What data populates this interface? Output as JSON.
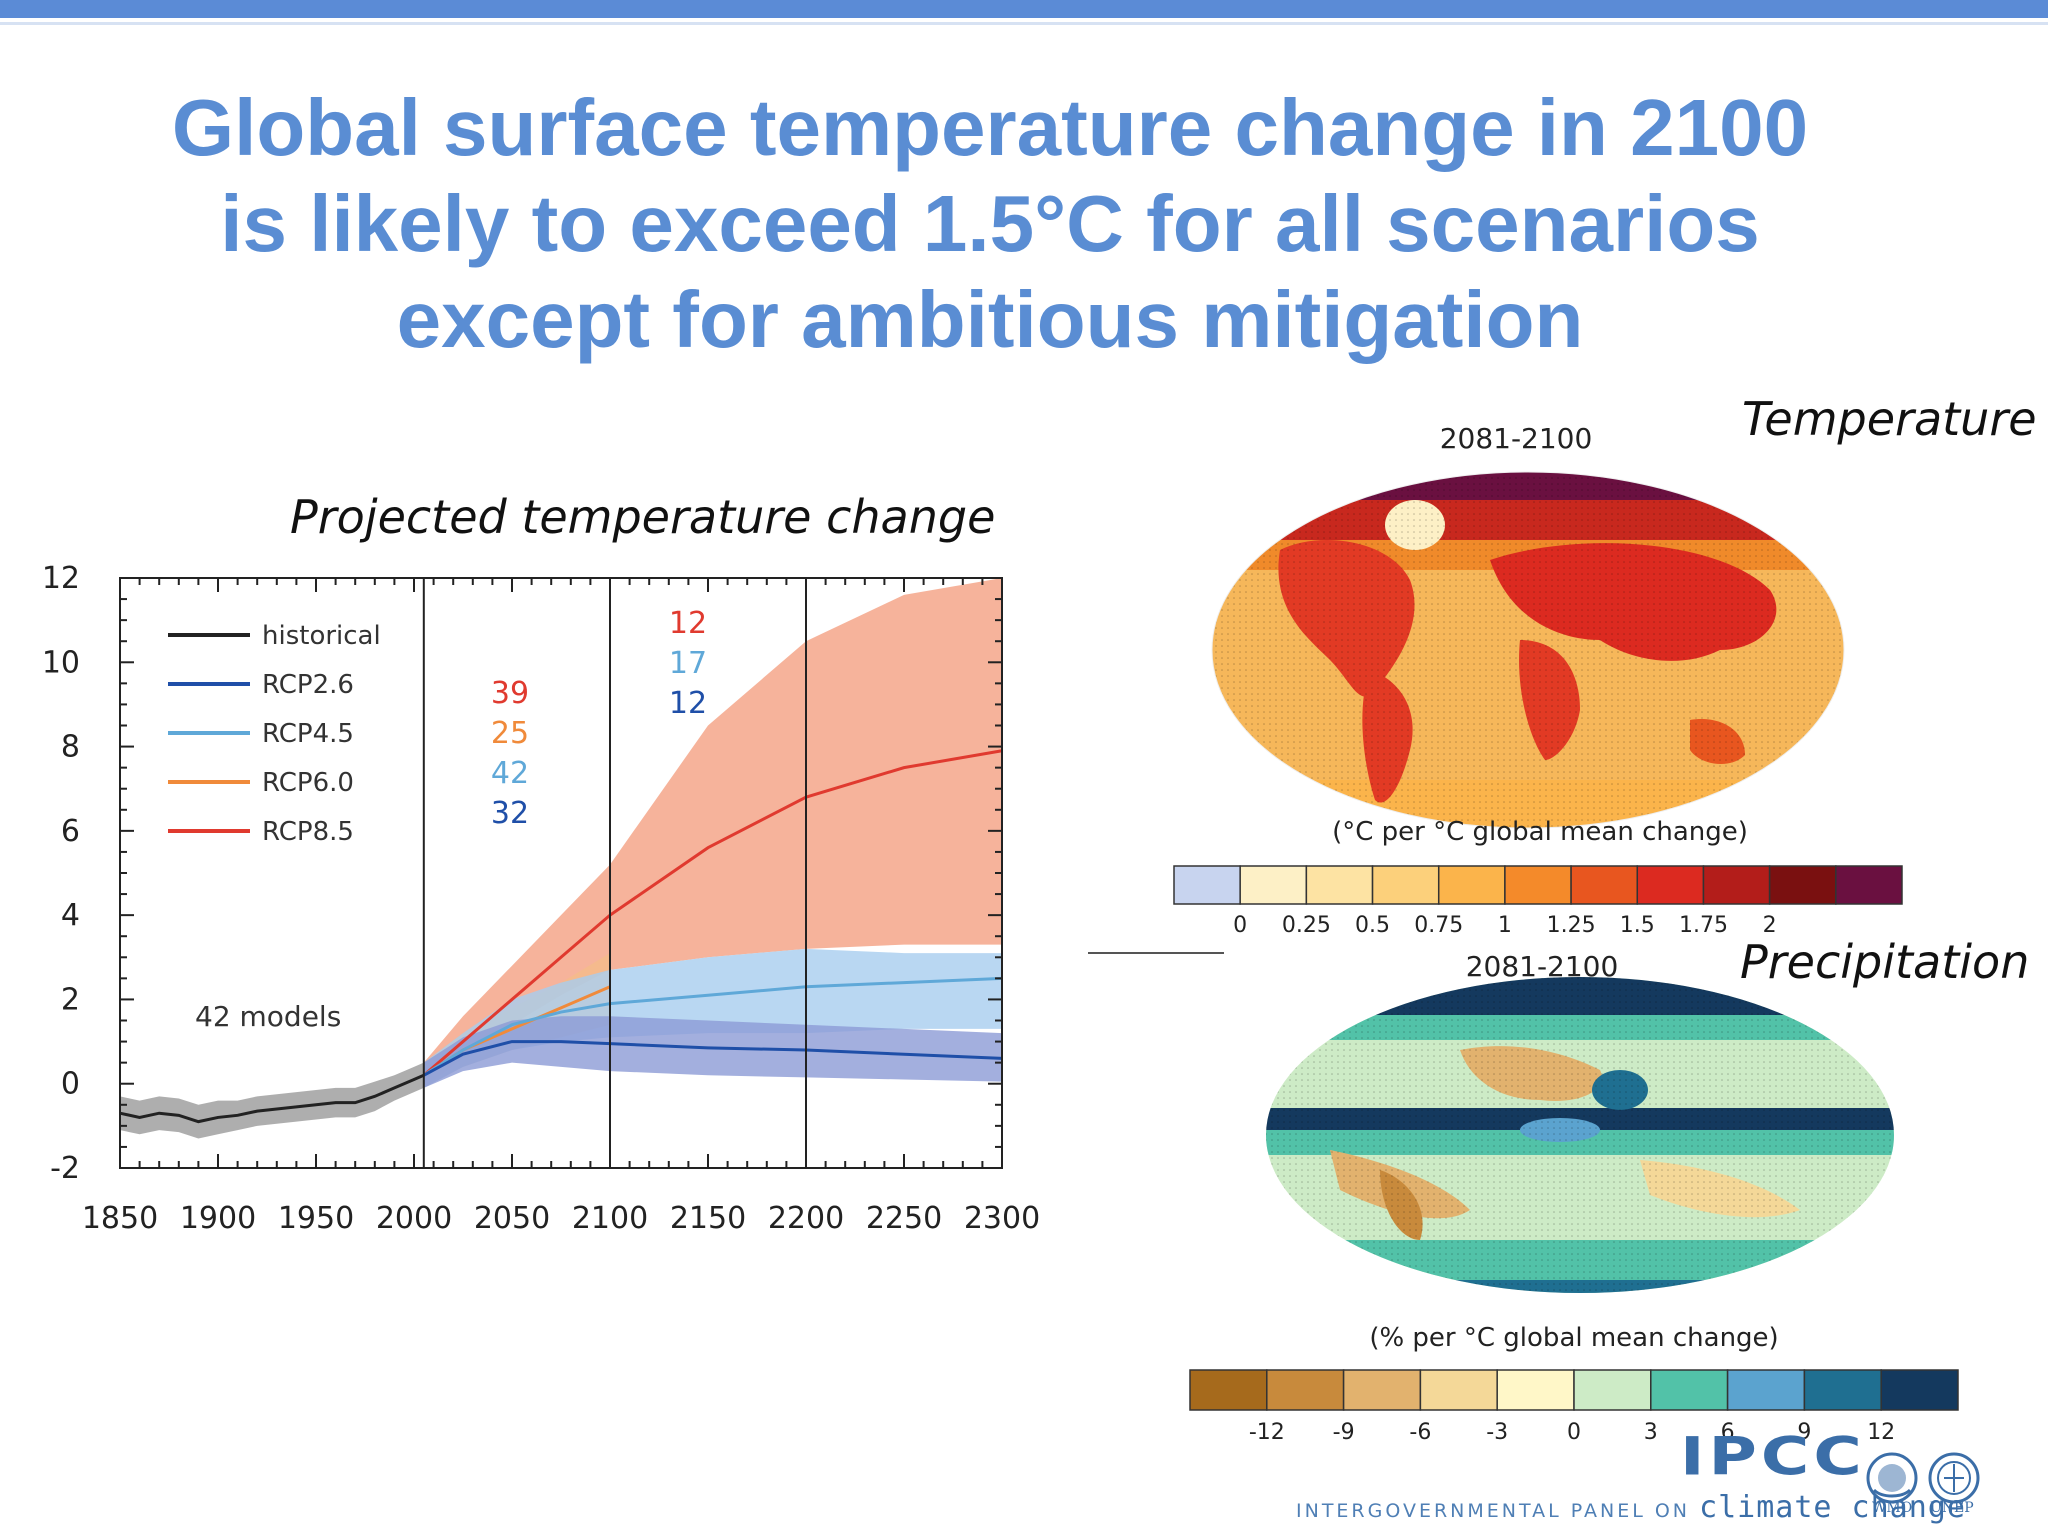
{
  "slide": {
    "title_lines": [
      "Global surface temperature change in 2100",
      "is likely to exceed 1.5°C for all scenarios",
      "except for ambitious mitigation"
    ],
    "left_label": "Projected temperature change",
    "temperature_label": "Temperature",
    "precipitation_label": "Precipitation",
    "accent_color": "#5a8dd3"
  },
  "chart_data": [
    {
      "type": "line",
      "xlim": [
        1850,
        2300
      ],
      "ylim": [
        -2,
        12
      ],
      "x_ticks": [
        1850,
        1900,
        1950,
        2000,
        2050,
        2100,
        2150,
        2200,
        2250,
        2300
      ],
      "y_ticks": [
        -2,
        0,
        2,
        4,
        6,
        8,
        10,
        12
      ],
      "period_lines": [
        2005,
        2100,
        2200
      ],
      "annotation": "42 models",
      "legend": [
        "historical",
        "RCP2.6",
        "RCP4.5",
        "RCP6.0",
        "RCP8.5"
      ],
      "model_counts": [
        {
          "period": "2006-2100",
          "values": [
            39,
            25,
            42,
            32
          ]
        },
        {
          "period": "2101-2300",
          "values": [
            12,
            17,
            12
          ]
        }
      ],
      "series": [
        {
          "name": "historical",
          "color": "#222222",
          "band_color": "#9a9a9a",
          "x": [
            1850,
            1860,
            1870,
            1880,
            1890,
            1900,
            1910,
            1920,
            1930,
            1940,
            1950,
            1960,
            1970,
            1980,
            1990,
            2000,
            2005
          ],
          "y": [
            -0.7,
            -0.8,
            -0.7,
            -0.75,
            -0.9,
            -0.8,
            -0.75,
            -0.65,
            -0.6,
            -0.55,
            -0.5,
            -0.45,
            -0.45,
            -0.3,
            -0.1,
            0.1,
            0.2
          ],
          "low": [
            -1.1,
            -1.2,
            -1.1,
            -1.15,
            -1.3,
            -1.2,
            -1.1,
            -1.0,
            -0.95,
            -0.9,
            -0.85,
            -0.8,
            -0.8,
            -0.65,
            -0.4,
            -0.2,
            -0.1
          ],
          "high": [
            -0.3,
            -0.4,
            -0.3,
            -0.35,
            -0.5,
            -0.4,
            -0.4,
            -0.3,
            -0.25,
            -0.2,
            -0.15,
            -0.1,
            -0.1,
            0.05,
            0.2,
            0.4,
            0.5
          ]
        },
        {
          "name": "RCP8.5",
          "color": "#e03a2f",
          "band_color": "#f4a082",
          "x": [
            2005,
            2025,
            2050,
            2075,
            2100,
            2150,
            2200,
            2250,
            2300
          ],
          "y": [
            0.2,
            1.0,
            2.0,
            3.0,
            4.0,
            5.6,
            6.8,
            7.5,
            7.9
          ],
          "low": [
            -0.1,
            0.6,
            1.4,
            2.1,
            2.7,
            3.0,
            3.2,
            3.3,
            3.3
          ],
          "high": [
            0.5,
            1.6,
            2.8,
            4.0,
            5.2,
            8.5,
            10.5,
            11.6,
            12.0
          ]
        },
        {
          "name": "RCP6.0",
          "color": "#f08a3a",
          "band_color": "#f5bb8a",
          "x": [
            2005,
            2025,
            2050,
            2075,
            2100
          ],
          "y": [
            0.2,
            0.8,
            1.3,
            1.8,
            2.3
          ],
          "low": [
            -0.1,
            0.4,
            0.8,
            1.1,
            1.4
          ],
          "high": [
            0.5,
            1.2,
            1.8,
            2.4,
            3.1
          ]
        },
        {
          "name": "RCP4.5",
          "color": "#5fa8d8",
          "band_color": "#a8cdef",
          "x": [
            2005,
            2025,
            2050,
            2075,
            2100,
            2150,
            2200,
            2250,
            2300
          ],
          "y": [
            0.2,
            0.8,
            1.4,
            1.7,
            1.9,
            2.1,
            2.3,
            2.4,
            2.5
          ],
          "low": [
            -0.1,
            0.4,
            0.8,
            1.0,
            1.1,
            1.2,
            1.2,
            1.3,
            1.3
          ],
          "high": [
            0.5,
            1.2,
            2.0,
            2.4,
            2.7,
            3.0,
            3.2,
            3.1,
            3.1
          ]
        },
        {
          "name": "RCP2.6",
          "color": "#1f4fa8",
          "band_color": "#8c9bd6",
          "x": [
            2005,
            2025,
            2050,
            2075,
            2100,
            2150,
            2200,
            2250,
            2300
          ],
          "y": [
            0.2,
            0.7,
            1.0,
            1.0,
            0.95,
            0.85,
            0.8,
            0.7,
            0.6
          ],
          "low": [
            -0.1,
            0.3,
            0.5,
            0.4,
            0.3,
            0.2,
            0.15,
            0.1,
            0.05
          ],
          "high": [
            0.5,
            1.1,
            1.5,
            1.6,
            1.6,
            1.5,
            1.4,
            1.3,
            1.2
          ]
        }
      ]
    },
    {
      "type": "heatmap",
      "panel": "temperature",
      "period": "2081-2100",
      "units_label": "(°C per °C global mean change)",
      "colorbar": {
        "colors": [
          "#c8d4ef",
          "#fdf0c6",
          "#fde3a3",
          "#fcd07b",
          "#fbb44b",
          "#f48a2a",
          "#e8561f",
          "#dc2a20",
          "#b31d1a",
          "#7a1010",
          "#6a1040"
        ],
        "tick_labels": [
          "0",
          "0.25",
          "0.5",
          "0.75",
          "1",
          "1.25",
          "1.5",
          "1.75",
          "2"
        ]
      }
    },
    {
      "type": "heatmap",
      "panel": "precipitation",
      "period": "2081-2100",
      "units_label": "(% per °C global mean change)",
      "colorbar": {
        "colors": [
          "#a66a1c",
          "#c88a3c",
          "#e2b26e",
          "#f4d898",
          "#fff7c8",
          "#cdebc6",
          "#52c2a8",
          "#5ba3cf",
          "#1f6f91",
          "#14395e"
        ],
        "tick_labels": [
          "-12",
          "-9",
          "-6",
          "-3",
          "0",
          "3",
          "6",
          "9",
          "12"
        ]
      }
    }
  ],
  "footer": {
    "org_text": "INTERGOVERNMENTAL PANEL ON",
    "climate_text": "climate change",
    "logo_text": "IPCC",
    "wmo_label": "WMO",
    "unep_label": "UNEP"
  }
}
